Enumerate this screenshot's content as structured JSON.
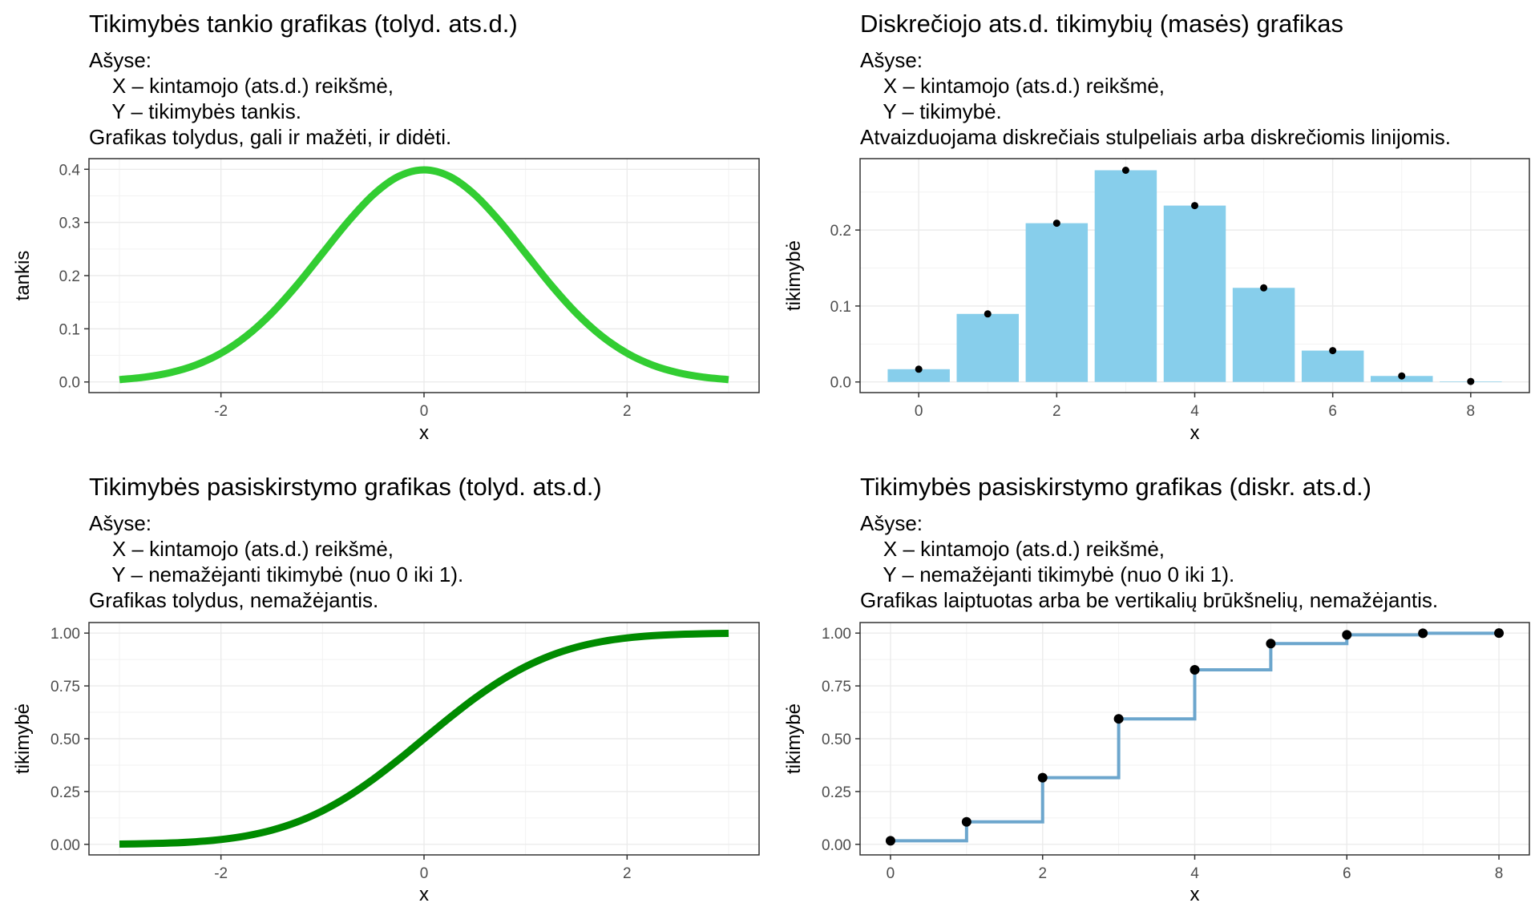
{
  "chart_data": [
    {
      "type": "line",
      "title": "Tikimybės tankio grafikas (tolyd. ats.d.)",
      "subtitle_lines": [
        "Ašyse:",
        "    X – kintamojo (ats.d.) reikšmė,",
        "    Y – tikimybės tankis.",
        "Grafikas tolydus, gali ir mažėti, ir didėti."
      ],
      "xlabel": "x",
      "ylabel": "tankis",
      "xlim": [
        -3.3,
        3.3
      ],
      "ylim": [
        -0.02,
        0.42
      ],
      "x_ticks": [
        -2,
        0,
        2
      ],
      "x_tick_labels": [
        "-2",
        "0",
        "2"
      ],
      "y_ticks": [
        0.0,
        0.1,
        0.2,
        0.3,
        0.4
      ],
      "y_tick_labels": [
        "0.0",
        "0.1",
        "0.2",
        "0.3",
        "0.4"
      ],
      "grid": true,
      "line_color": "#32cd32",
      "series": [
        {
          "x": [
            -3.0,
            -2.75,
            -2.5,
            -2.25,
            -2.0,
            -1.75,
            -1.5,
            -1.25,
            -1.0,
            -0.75,
            -0.5,
            -0.25,
            0.0,
            0.25,
            0.5,
            0.75,
            1.0,
            1.25,
            1.5,
            1.75,
            2.0,
            2.25,
            2.5,
            2.75,
            3.0
          ],
          "values": [
            0.0044,
            0.0091,
            0.0175,
            0.0317,
            0.054,
            0.0863,
            0.1295,
            0.1826,
            0.242,
            0.3011,
            0.3521,
            0.3867,
            0.3989,
            0.3867,
            0.3521,
            0.3011,
            0.242,
            0.1826,
            0.1295,
            0.0863,
            0.054,
            0.0317,
            0.0175,
            0.0091,
            0.0044
          ]
        }
      ]
    },
    {
      "type": "bar",
      "title": "Diskrečiojo ats.d. tikimybių (masės) grafikas",
      "subtitle_lines": [
        "Ašyse:",
        "    X – kintamojo (ats.d.) reikšmė,",
        "    Y – tikimybė.",
        "Atvaizduojama diskrečiais stulpeliais arba diskrečiomis linijomis."
      ],
      "xlabel": "x",
      "ylabel": "tikimybė",
      "xlim": [
        -0.85,
        8.85
      ],
      "ylim": [
        -0.014,
        0.294
      ],
      "x_ticks": [
        0,
        2,
        4,
        6,
        8
      ],
      "x_tick_labels": [
        "0",
        "2",
        "4",
        "6",
        "8"
      ],
      "y_ticks": [
        0.0,
        0.1,
        0.2
      ],
      "y_tick_labels": [
        "0.0",
        "0.1",
        "0.2"
      ],
      "grid": true,
      "bar_color": "#87ceeb",
      "point_color": "#000000",
      "series": [
        {
          "x": [
            0,
            1,
            2,
            3,
            4,
            5,
            6,
            7,
            8
          ],
          "values": [
            0.0168,
            0.0896,
            0.209,
            0.2787,
            0.2322,
            0.1239,
            0.0413,
            0.0079,
            0.0007
          ]
        }
      ]
    },
    {
      "type": "line",
      "title": "Tikimybės pasiskirstymo grafikas (tolyd. ats.d.)",
      "subtitle_lines": [
        "Ašyse:",
        "    X – kintamojo (ats.d.) reikšmė,",
        "    Y – nemažėjanti tikimybė (nuo 0 iki 1).",
        "Grafikas tolydus, nemažėjantis."
      ],
      "xlabel": "x",
      "ylabel": "tikimybė",
      "xlim": [
        -3.3,
        3.3
      ],
      "ylim": [
        -0.05,
        1.05
      ],
      "x_ticks": [
        -2,
        0,
        2
      ],
      "x_tick_labels": [
        "-2",
        "0",
        "2"
      ],
      "y_ticks": [
        0.0,
        0.25,
        0.5,
        0.75,
        1.0
      ],
      "y_tick_labels": [
        "0.00",
        "0.25",
        "0.50",
        "0.75",
        "1.00"
      ],
      "grid": true,
      "line_color": "#008b00",
      "series": [
        {
          "x": [
            -3.0,
            -2.75,
            -2.5,
            -2.25,
            -2.0,
            -1.75,
            -1.5,
            -1.25,
            -1.0,
            -0.75,
            -0.5,
            -0.25,
            0.0,
            0.25,
            0.5,
            0.75,
            1.0,
            1.25,
            1.5,
            1.75,
            2.0,
            2.25,
            2.5,
            2.75,
            3.0
          ],
          "values": [
            0.0013,
            0.003,
            0.0062,
            0.0122,
            0.0228,
            0.0401,
            0.0668,
            0.1056,
            0.1587,
            0.2266,
            0.3085,
            0.4013,
            0.5,
            0.5987,
            0.6915,
            0.7734,
            0.8413,
            0.8944,
            0.9332,
            0.9599,
            0.9772,
            0.9878,
            0.9938,
            0.997,
            0.9987
          ]
        }
      ]
    },
    {
      "type": "line",
      "title": "Tikimybės pasiskirstymo grafikas (diskr. ats.d.)",
      "subtitle_lines": [
        "Ašyse:",
        "    X – kintamojo (ats.d.) reikšmė,",
        "    Y – nemažėjanti tikimybė (nuo 0 iki 1).",
        "Grafikas laiptuotas arba be vertikalių brūkšnelių, nemažėjantis."
      ],
      "xlabel": "x",
      "ylabel": "tikimybė",
      "xlim": [
        -0.4,
        8.4
      ],
      "ylim": [
        -0.05,
        1.05
      ],
      "x_ticks": [
        0,
        2,
        4,
        6,
        8
      ],
      "x_tick_labels": [
        "0",
        "2",
        "4",
        "6",
        "8"
      ],
      "y_ticks": [
        0.0,
        0.25,
        0.5,
        0.75,
        1.0
      ],
      "y_tick_labels": [
        "0.00",
        "0.25",
        "0.50",
        "0.75",
        "1.00"
      ],
      "grid": true,
      "step": true,
      "line_color": "#6ca6cd",
      "point_color": "#000000",
      "series": [
        {
          "x": [
            0,
            1,
            2,
            3,
            4,
            5,
            6,
            7,
            8
          ],
          "values": [
            0.0168,
            0.1064,
            0.3154,
            0.5941,
            0.8263,
            0.9502,
            0.9915,
            0.9993,
            1.0
          ]
        }
      ]
    }
  ]
}
